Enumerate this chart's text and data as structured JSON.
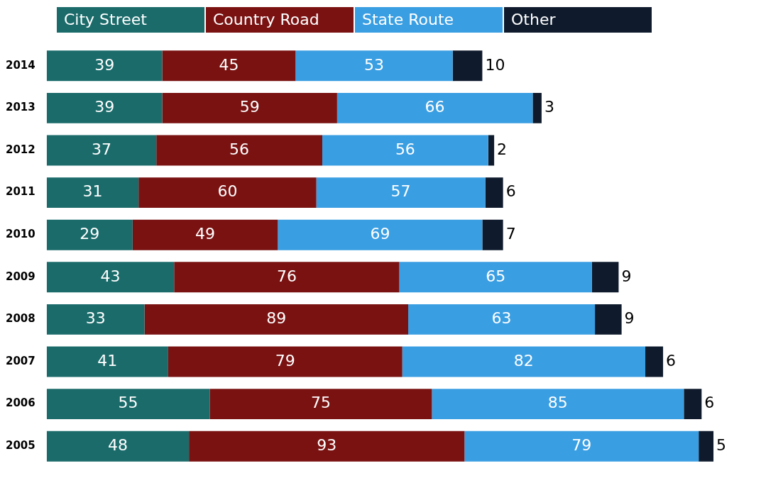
{
  "chart_data": {
    "type": "bar",
    "orientation": "horizontal",
    "stacked": true,
    "data_labels": true,
    "legend": "top",
    "tick_labels": "y",
    "categories": [
      "2014",
      "2013",
      "2012",
      "2011",
      "2010",
      "2009",
      "2008",
      "2007",
      "2006",
      "2005"
    ],
    "series": [
      {
        "name": "City Street",
        "color": "#1b6b6b",
        "values": [
          39,
          39,
          37,
          31,
          29,
          43,
          33,
          41,
          55,
          48
        ]
      },
      {
        "name": "Country Road",
        "color": "#7a1212",
        "values": [
          45,
          59,
          56,
          60,
          49,
          76,
          89,
          79,
          75,
          93
        ]
      },
      {
        "name": "State Route",
        "color": "#3a9ee2",
        "values": [
          53,
          66,
          56,
          57,
          69,
          65,
          63,
          82,
          85,
          79
        ]
      },
      {
        "name": "Other",
        "color": "#0f1b2d",
        "values": [
          10,
          3,
          2,
          6,
          7,
          9,
          9,
          6,
          6,
          5
        ]
      }
    ]
  }
}
